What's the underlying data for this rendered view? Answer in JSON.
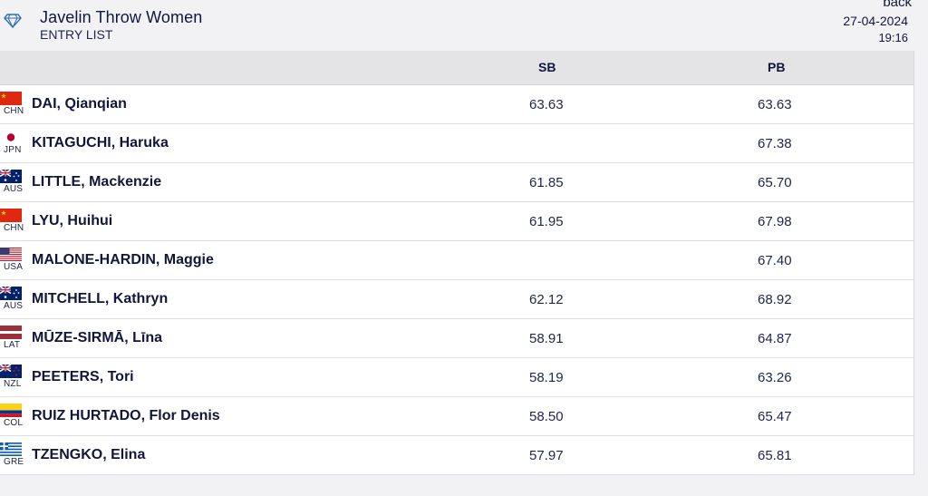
{
  "header": {
    "title": "Javelin Throw Women",
    "subtitle": "ENTRY LIST",
    "back_label": "back",
    "date": "27-04-2024",
    "time": "19:16",
    "logo_icon": "diamond-icon"
  },
  "table": {
    "columns": {
      "sb": "SB",
      "pb": "PB"
    },
    "rows": [
      {
        "flag": "CHN",
        "code": "CHN",
        "name": "DAI, Qianqian",
        "sb": "63.63",
        "pb": "63.63"
      },
      {
        "flag": "JPN",
        "code": "JPN",
        "name": "KITAGUCHI, Haruka",
        "sb": "",
        "pb": "67.38"
      },
      {
        "flag": "AUS",
        "code": "AUS",
        "name": "LITTLE, Mackenzie",
        "sb": "61.85",
        "pb": "65.70"
      },
      {
        "flag": "CHN",
        "code": "CHN",
        "name": "LYU, Huihui",
        "sb": "61.95",
        "pb": "67.98"
      },
      {
        "flag": "USA",
        "code": "USA",
        "name": "MALONE-HARDIN, Maggie",
        "sb": "",
        "pb": "67.40"
      },
      {
        "flag": "AUS",
        "code": "AUS",
        "name": "MITCHELL, Kathryn",
        "sb": "62.12",
        "pb": "68.92"
      },
      {
        "flag": "LAT",
        "code": "LAT",
        "name": "MŪZE-SIRMĀ, Līna",
        "sb": "58.91",
        "pb": "64.87"
      },
      {
        "flag": "NZL",
        "code": "NZL",
        "name": "PEETERS, Tori",
        "sb": "58.19",
        "pb": "63.26"
      },
      {
        "flag": "COL",
        "code": "COL",
        "name": "RUIZ HURTADO, Flor Denis",
        "sb": "58.50",
        "pb": "65.47"
      },
      {
        "flag": "GRE",
        "code": "GRE",
        "name": "TZENGKO, Elina",
        "sb": "57.97",
        "pb": "65.81"
      }
    ]
  }
}
